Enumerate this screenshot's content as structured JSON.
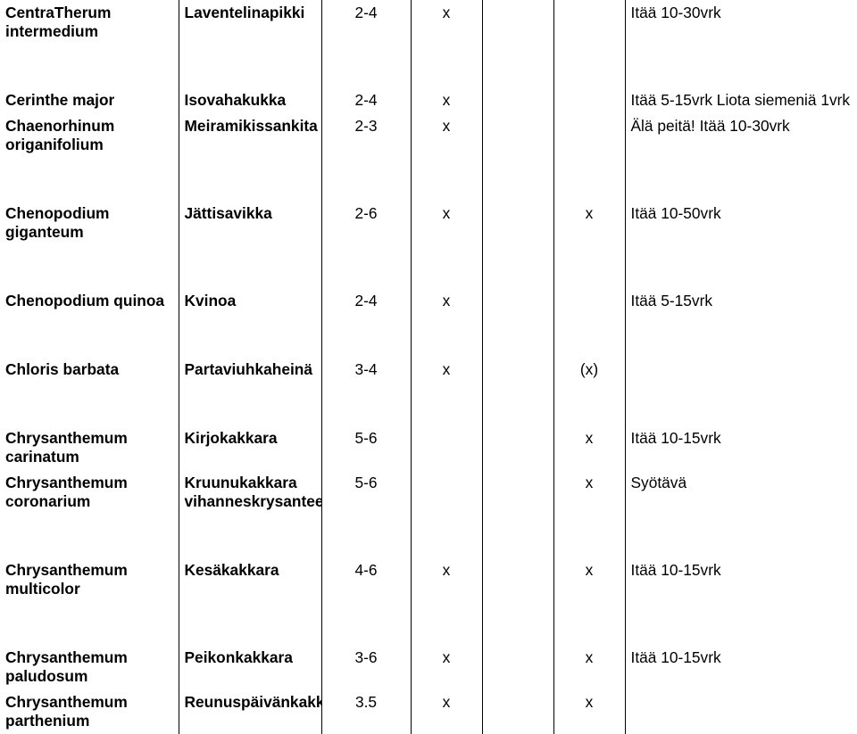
{
  "text_color": "#000000",
  "background_color": "#ffffff",
  "border_color": "#000000",
  "font_size_pt": 13,
  "rows": [
    {
      "c0": "CentraTherum intermedium",
      "c1": "Laventelinapikki",
      "c2": "2-4",
      "c3": "x",
      "c4": "",
      "c5": "",
      "c6": "Itää 10-30vrk",
      "bold": true,
      "spacer_after": true
    },
    {
      "c0": "Cerinthe major",
      "c1": "Isovahakukka",
      "c2": "2-4",
      "c3": "x",
      "c4": "",
      "c5": "",
      "c6": "Itää 5-15vrk Liota siemeniä 1vrk",
      "bold": true,
      "spacer_after": false
    },
    {
      "c0": "Chaenorhinum origanifolium",
      "c1": "Meiramikissankita",
      "c2": "2-3",
      "c3": "x",
      "c4": "",
      "c5": "",
      "c6": "Älä peitä! Itää 10-30vrk",
      "bold": true,
      "spacer_after": true
    },
    {
      "c0": "Chenopodium giganteum",
      "c1": "Jättisavikka",
      "c2": "2-6",
      "c3": "x",
      "c4": "",
      "c5": "x",
      "c6": "Itää 10-50vrk",
      "bold": true,
      "spacer_after": true
    },
    {
      "c0": "Chenopodium quinoa",
      "c1": "Kvinoa",
      "c2": "2-4",
      "c3": "x",
      "c4": "",
      "c5": "",
      "c6": "Itää 5-15vrk",
      "bold": true,
      "spacer_after": true
    },
    {
      "c0": "Chloris barbata",
      "c1": "Partaviuhkaheinä",
      "c2": "3-4",
      "c3": "x",
      "c4": "",
      "c5": "(x)",
      "c6": "",
      "bold": true,
      "spacer_after": true
    },
    {
      "c0": "Chrysanthemum carinatum",
      "c1": "Kirjokakkara",
      "c2": "5-6",
      "c3": "",
      "c4": "",
      "c5": "x",
      "c6": "Itää 10-15vrk",
      "bold": true,
      "spacer_after": false
    },
    {
      "c0": "Chrysanthemum coronarium",
      "c1": "Kruunukakkara vihanneskrysanteemi",
      "c2": "5-6",
      "c3": "",
      "c4": "",
      "c5": "x",
      "c6": "Syötävä",
      "bold": true,
      "spacer_after": true
    },
    {
      "c0": "Chrysanthemum multicolor",
      "c1": "Kesäkakkara",
      "c2": "4-6",
      "c3": "x",
      "c4": "",
      "c5": "x",
      "c6": "Itää 10-15vrk",
      "bold": true,
      "spacer_after": true
    },
    {
      "c0": "Chrysanthemum paludosum",
      "c1": "Peikonkakkara",
      "c2": "3-6",
      "c3": "x",
      "c4": "",
      "c5": "x",
      "c6": "Itää 10-15vrk",
      "bold": true,
      "spacer_after": false
    },
    {
      "c0": "Chrysanthemum parthenium",
      "c1": "Reunuspäivänkakkara",
      "c2": "3.5",
      "c3": "x",
      "c4": "",
      "c5": "x",
      "c6": "",
      "bold": true,
      "spacer_after": false
    }
  ]
}
